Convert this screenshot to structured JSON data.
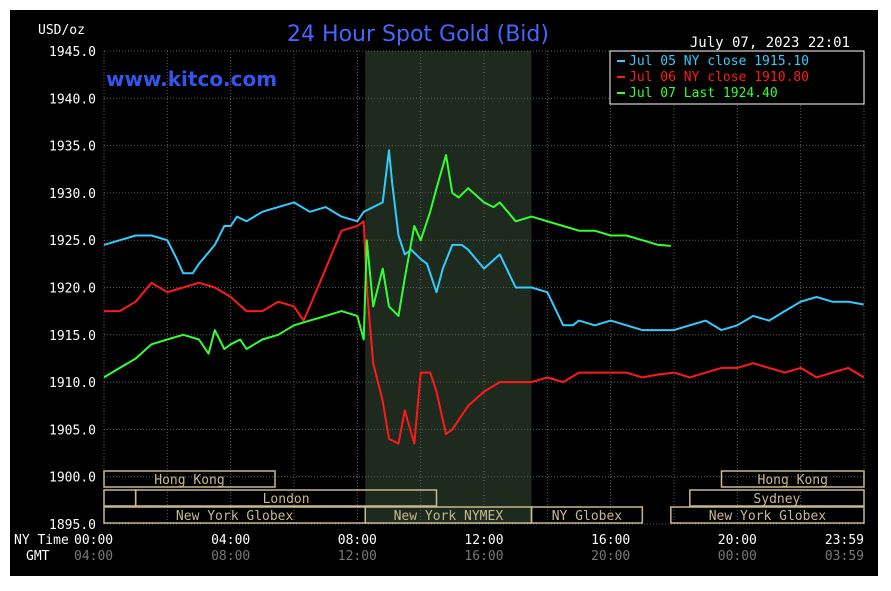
{
  "chart_data": {
    "type": "line",
    "title": "24 Hour Spot Gold (Bid)",
    "subtitle": "www.kitco.com",
    "date_stamp": "July 07, 2023 22:01",
    "ylabel": "USD/oz",
    "ylim": [
      1895,
      1945
    ],
    "y_ticks": [
      "1945.0",
      "1940.0",
      "1935.0",
      "1930.0",
      "1925.0",
      "1920.0",
      "1915.0",
      "1910.0",
      "1905.0",
      "1900.0",
      "1895.0"
    ],
    "x_row_labels": [
      "NY Time",
      "GMT"
    ],
    "x_ticks_ny": [
      "00:00",
      "04:00",
      "08:00",
      "12:00",
      "16:00",
      "20:00",
      "23:59"
    ],
    "x_ticks_gmt": [
      "04:00",
      "08:00",
      "12:00",
      "16:00",
      "20:00",
      "00:00",
      "03:59"
    ],
    "xlim": [
      0,
      24
    ],
    "shaded_region": [
      8.25,
      13.5
    ],
    "sessions": [
      {
        "label": "Hong Kong",
        "start": 0,
        "end": 5.4,
        "row": 0
      },
      {
        "label": "Hong Kong",
        "start": 19.5,
        "end": 24,
        "row": 0
      },
      {
        "label": "",
        "start": 0,
        "end": 1.0,
        "row": 1
      },
      {
        "label": "London",
        "start": 1.0,
        "end": 10.5,
        "row": 1
      },
      {
        "label": "Sydney",
        "start": 18.5,
        "end": 24,
        "row": 1
      },
      {
        "label": "New York Globex",
        "start": 0,
        "end": 8.25,
        "row": 2
      },
      {
        "label": "New York NYMEX",
        "start": 8.25,
        "end": 13.5,
        "row": 2
      },
      {
        "label": "NY Globex",
        "start": 13.5,
        "end": 17.0,
        "row": 2
      },
      {
        "label": "New York Globex",
        "start": 17.9,
        "end": 24,
        "row": 2
      }
    ],
    "series": [
      {
        "name": "Jul 05 NY close 1915.10",
        "color": "#33ccff",
        "x": [
          0,
          0.5,
          1,
          1.5,
          2,
          2.3,
          2.5,
          2.8,
          3,
          3.5,
          3.8,
          4,
          4.2,
          4.5,
          5,
          5.5,
          6,
          6.5,
          7,
          7.5,
          8,
          8.2,
          8.5,
          8.8,
          9,
          9.1,
          9.3,
          9.5,
          9.7,
          10,
          10.2,
          10.5,
          10.7,
          11,
          11.3,
          11.5,
          12,
          12.5,
          13,
          13.5,
          14,
          14.5,
          14.8,
          15,
          15.5,
          16,
          16.5,
          17,
          17.5,
          18,
          18.5,
          19,
          19.5,
          20,
          20.5,
          21,
          21.5,
          22,
          22.5,
          23,
          23.5,
          23.99
        ],
        "values": [
          1924.5,
          1925,
          1925.5,
          1925.5,
          1925,
          1923,
          1921.5,
          1921.5,
          1922.5,
          1924.5,
          1926.5,
          1926.5,
          1927.5,
          1927,
          1928,
          1928.5,
          1929,
          1928,
          1928.5,
          1927.5,
          1927,
          1928,
          1928.5,
          1929,
          1934.5,
          1931,
          1925.5,
          1923.5,
          1924,
          1923,
          1922.5,
          1919.5,
          1922,
          1924.5,
          1924.5,
          1924,
          1922,
          1923.5,
          1920,
          1920,
          1919.5,
          1916,
          1916,
          1916.5,
          1916,
          1916.5,
          1916,
          1915.5,
          1915.5,
          1915.5,
          1916,
          1916.5,
          1915.5,
          1916,
          1917,
          1916.5,
          1917.5,
          1918.5,
          1919,
          1918.5,
          1918.5,
          1918.2
        ]
      },
      {
        "name": "Jul 06 NY close 1910.80",
        "color": "#ff1a1a",
        "x": [
          0,
          0.5,
          1,
          1.5,
          2,
          2.5,
          3,
          3.5,
          4,
          4.5,
          5,
          5.5,
          6,
          6.3,
          6.5,
          7,
          7.5,
          8,
          8.2,
          8.3,
          8.5,
          8.8,
          9,
          9.3,
          9.5,
          9.8,
          10,
          10.3,
          10.5,
          10.8,
          11,
          11.5,
          12,
          12.5,
          13,
          13.5,
          14,
          14.5,
          15,
          15.5,
          16,
          16.5,
          17,
          17.5,
          18,
          18.5,
          19,
          19.5,
          20,
          20.5,
          21,
          21.5,
          22,
          22.5,
          23,
          23.5,
          23.99
        ],
        "values": [
          1917.5,
          1917.5,
          1918.5,
          1920.5,
          1919.5,
          1920,
          1920.5,
          1920,
          1919,
          1917.5,
          1917.5,
          1918.5,
          1918,
          1916.5,
          1918,
          1922,
          1926,
          1926.5,
          1927,
          1920,
          1912,
          1908,
          1904,
          1903.5,
          1907,
          1903.5,
          1911,
          1911,
          1909,
          1904.5,
          1905,
          1907.5,
          1909,
          1910,
          1910,
          1910,
          1910.5,
          1910,
          1911,
          1911,
          1911,
          1911,
          1910.5,
          1910.8,
          1911,
          1910.5,
          1911,
          1911.5,
          1911.5,
          1912,
          1911.5,
          1911,
          1911.5,
          1910.5,
          1911,
          1911.5,
          1910.5
        ]
      },
      {
        "name": "Jul 07 Last 1924.40",
        "color": "#33ff33",
        "x": [
          0,
          0.5,
          1,
          1.5,
          2,
          2.5,
          3,
          3.3,
          3.5,
          3.8,
          4,
          4.3,
          4.5,
          5,
          5.5,
          6,
          6.5,
          7,
          7.5,
          8,
          8.2,
          8.3,
          8.5,
          8.8,
          9,
          9.3,
          9.5,
          9.8,
          10,
          10.3,
          10.5,
          10.8,
          11,
          11.2,
          11.5,
          12,
          12.3,
          12.5,
          13,
          13.5,
          14,
          14.5,
          15,
          15.5,
          16,
          16.5,
          17,
          17.5,
          17.9
        ],
        "values": [
          1910.5,
          1911.5,
          1912.5,
          1914,
          1914.5,
          1915,
          1914.5,
          1913,
          1915.5,
          1913.5,
          1914,
          1914.5,
          1913.5,
          1914.5,
          1915,
          1916,
          1916.5,
          1917,
          1917.5,
          1917,
          1914.5,
          1925,
          1918,
          1922,
          1918,
          1917,
          1921,
          1926.5,
          1925,
          1928,
          1930.5,
          1934,
          1930,
          1929.5,
          1930.5,
          1929,
          1928.5,
          1929,
          1927,
          1927.5,
          1927,
          1926.5,
          1926,
          1926,
          1925.5,
          1925.5,
          1925,
          1924.5,
          1924.4
        ]
      }
    ]
  }
}
